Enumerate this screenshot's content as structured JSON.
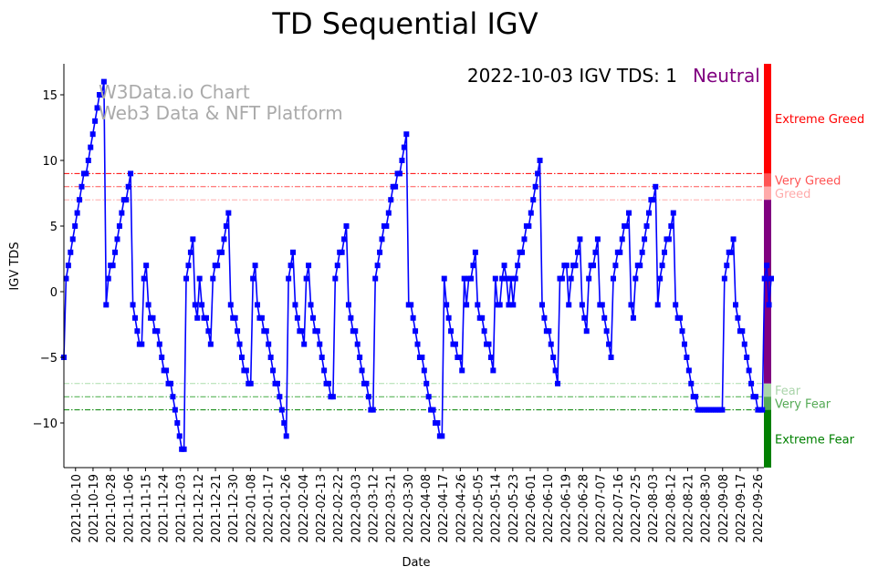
{
  "chart_data": {
    "type": "line",
    "title": "TD Sequential IGV",
    "xlabel": "Date",
    "ylabel": "IGV TDS",
    "start_date": "2021-10-04",
    "end_date": "2022-10-03",
    "ylim": [
      -13.4,
      17.4
    ],
    "yticks": [
      -10,
      -5,
      0,
      5,
      10,
      15
    ],
    "ytick_labels": [
      "−10",
      "−5",
      "0",
      "5",
      "10",
      "15"
    ],
    "xtick_labels": [
      "2021-10-10",
      "2021-10-19",
      "2021-10-28",
      "2021-11-06",
      "2021-11-15",
      "2021-11-24",
      "2021-12-03",
      "2021-12-12",
      "2021-12-21",
      "2021-12-30",
      "2022-01-08",
      "2022-01-17",
      "2022-01-26",
      "2022-02-04",
      "2022-02-13",
      "2022-02-22",
      "2022-03-03",
      "2022-03-12",
      "2022-03-21",
      "2022-03-30",
      "2022-04-08",
      "2022-04-17",
      "2022-04-26",
      "2022-05-05",
      "2022-05-14",
      "2022-05-23",
      "2022-06-01",
      "2022-06-10",
      "2022-06-19",
      "2022-06-28",
      "2022-07-07",
      "2022-07-16",
      "2022-07-25",
      "2022-08-03",
      "2022-08-12",
      "2022-08-21",
      "2022-08-30",
      "2022-09-08",
      "2022-09-17",
      "2022-09-26"
    ],
    "series": [
      {
        "name": "IGV TDS",
        "color": "#0000ff",
        "values": [
          -5,
          1,
          2,
          3,
          4,
          5,
          6,
          7,
          8,
          9,
          9,
          10,
          11,
          12,
          13,
          14,
          15,
          15,
          16,
          -1,
          1,
          2,
          2,
          3,
          4,
          5,
          6,
          7,
          7,
          8,
          9,
          -1,
          -2,
          -3,
          -4,
          -4,
          1,
          2,
          -1,
          -2,
          -2,
          -3,
          -3,
          -4,
          -5,
          -6,
          -6,
          -7,
          -7,
          -8,
          -9,
          -10,
          -11,
          -12,
          -12,
          1,
          2,
          3,
          4,
          -1,
          -2,
          1,
          -1,
          -2,
          -2,
          -3,
          -4,
          1,
          2,
          2,
          3,
          3,
          4,
          5,
          6,
          -1,
          -2,
          -2,
          -3,
          -4,
          -5,
          -6,
          -6,
          -7,
          -7,
          1,
          2,
          -1,
          -2,
          -2,
          -3,
          -3,
          -4,
          -5,
          -6,
          -7,
          -7,
          -8,
          -9,
          -10,
          -11,
          1,
          2,
          3,
          -1,
          -2,
          -3,
          -3,
          -4,
          1,
          2,
          -1,
          -2,
          -3,
          -3,
          -4,
          -5,
          -6,
          -7,
          -7,
          -8,
          -8,
          1,
          2,
          3,
          3,
          4,
          5,
          -1,
          -2,
          -3,
          -3,
          -4,
          -5,
          -6,
          -7,
          -7,
          -8,
          -9,
          -9,
          1,
          2,
          3,
          4,
          5,
          5,
          6,
          7,
          8,
          8,
          9,
          9,
          10,
          11,
          12,
          -1,
          -1,
          -2,
          -3,
          -4,
          -5,
          -5,
          -6,
          -7,
          -8,
          -9,
          -9,
          -10,
          -10,
          -11,
          -11,
          1,
          -1,
          -2,
          -3,
          -4,
          -4,
          -5,
          -5,
          -6,
          1,
          -1,
          1,
          1,
          2,
          3,
          -1,
          -2,
          -2,
          -3,
          -4,
          -4,
          -5,
          -6,
          1,
          -1,
          -1,
          1,
          2,
          1,
          -1,
          1,
          -1,
          1,
          2,
          3,
          3,
          4,
          5,
          5,
          6,
          7,
          8,
          9,
          10,
          -1,
          -2,
          -3,
          -3,
          -4,
          -5,
          -6,
          -7,
          1,
          1,
          2,
          2,
          -1,
          1,
          2,
          2,
          3,
          4,
          -1,
          -2,
          -3,
          1,
          2,
          2,
          3,
          4,
          -1,
          -1,
          -2,
          -3,
          -4,
          -5,
          1,
          2,
          3,
          3,
          4,
          5,
          5,
          6,
          -1,
          -2,
          1,
          2,
          2,
          3,
          4,
          5,
          6,
          7,
          7,
          8,
          -1,
          1,
          2,
          3,
          4,
          4,
          5,
          6,
          -1,
          -2,
          -2,
          -3,
          -4,
          -5,
          -6,
          -7,
          -8,
          -8,
          -9,
          -9,
          -9,
          -9,
          -9,
          -9,
          -9,
          -9,
          -9,
          -9,
          -9,
          -9,
          1,
          2,
          3,
          3,
          4,
          -1,
          -2,
          -3,
          -3,
          -4,
          -5,
          -6,
          -7,
          -8,
          -8,
          -9,
          -9,
          -9,
          1,
          2,
          -1,
          1
        ]
      }
    ],
    "reference_lines": [
      {
        "value": 9,
        "color": "#ff0000"
      },
      {
        "value": 8,
        "color": "#ff5555"
      },
      {
        "value": 7,
        "color": "#ffaaaa"
      },
      {
        "value": -7,
        "color": "#aaddaa"
      },
      {
        "value": -8,
        "color": "#44aa44"
      },
      {
        "value": -9,
        "color": "#008000"
      }
    ],
    "zones": [
      {
        "label": "Extreme Greed",
        "from": 9,
        "to": 17.4,
        "color": "#ff0000"
      },
      {
        "label": "Very Greed",
        "from": 8,
        "to": 9,
        "color": "#ff5555"
      },
      {
        "label": "Greed",
        "from": 7,
        "to": 8,
        "color": "#ffaaaa"
      },
      {
        "label": "Neutral",
        "from": -7,
        "to": 7,
        "color": "#800080"
      },
      {
        "label": "Fear",
        "from": -8,
        "to": -7,
        "color": "#aad4aa"
      },
      {
        "label": "Very Fear",
        "from": -9,
        "to": -8,
        "color": "#55aa55"
      },
      {
        "label": "Extreme Fear",
        "from": -13.4,
        "to": -9,
        "color": "#008000"
      }
    ],
    "annotation": {
      "text": "2022-10-03 IGV TDS: 1",
      "status": "Neutral",
      "status_color": "#800080"
    },
    "watermark": {
      "line1": "W3Data.io Chart",
      "line2": "Web3 Data & NFT Platform"
    }
  }
}
